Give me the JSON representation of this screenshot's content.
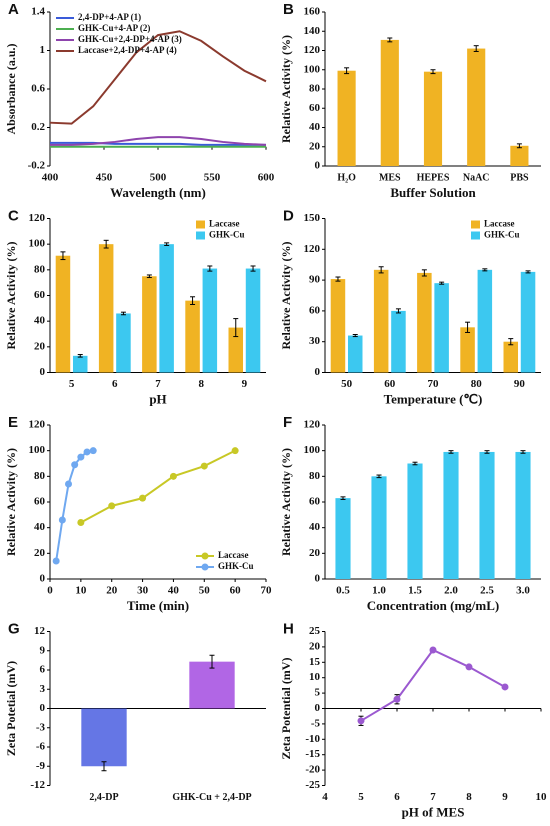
{
  "chart_data": [
    {
      "type": "line",
      "panel": "A",
      "x": [
        400,
        420,
        440,
        460,
        480,
        500,
        520,
        540,
        560,
        580,
        600
      ],
      "xlim": [
        400,
        600
      ],
      "xticks": [
        400,
        450,
        500,
        550,
        600
      ],
      "ylim": [
        -0.2,
        1.4
      ],
      "yticks": [
        -0.2,
        0.2,
        0.6,
        1,
        1.4
      ],
      "xlabel": "Wavelength (nm)",
      "ylabel": "Absorbance (a.u.)",
      "legend": "upper left",
      "series": [
        {
          "name": "2,4-DP+4-AP (1)",
          "color": "#3a5bd9",
          "values": [
            0.04,
            0.04,
            0.04,
            0.03,
            0.03,
            0.03,
            0.03,
            0.02,
            0.02,
            0.02,
            0.02
          ]
        },
        {
          "name": "GHK-Cu+4-AP (2)",
          "color": "#4caf50",
          "values": [
            0,
            0,
            0,
            0,
            0,
            0,
            0,
            0,
            0,
            0,
            0
          ]
        },
        {
          "name": "GHK-Cu+2,4-DP+4-AP (3)",
          "color": "#8e44ad",
          "values": [
            0.02,
            0.02,
            0.03,
            0.05,
            0.08,
            0.1,
            0.1,
            0.08,
            0.05,
            0.03,
            0.02
          ]
        },
        {
          "name": "Laccase+2,4-DP+4-AP (4)",
          "color": "#8b3a2e",
          "values": [
            0.25,
            0.24,
            0.42,
            0.7,
            0.98,
            1.16,
            1.2,
            1.1,
            0.94,
            0.79,
            0.68
          ]
        }
      ]
    },
    {
      "type": "bar",
      "panel": "B",
      "categories": [
        "H₂O",
        "MES",
        "HEPES",
        "NaAC",
        "PBS"
      ],
      "values": [
        99,
        131,
        98,
        122,
        21
      ],
      "errors": [
        3,
        2,
        2,
        3,
        2
      ],
      "color": "#f0b323",
      "ylim": [
        0,
        160
      ],
      "yticks": [
        0,
        20,
        40,
        60,
        80,
        100,
        120,
        140,
        160
      ],
      "xlabel": "Buffer Solution",
      "ylabel": "Relative Activity (%)"
    },
    {
      "type": "bar",
      "panel": "C",
      "categories": [
        "5",
        "6",
        "7",
        "8",
        "9"
      ],
      "ylim": [
        0,
        120
      ],
      "yticks": [
        0,
        20,
        40,
        60,
        80,
        100,
        120
      ],
      "xlabel": "pH",
      "ylabel": "Relative Activity (%)",
      "legend": "upper right",
      "series": [
        {
          "name": "Laccase",
          "color": "#f0b323",
          "values": [
            91,
            100,
            75,
            56,
            35
          ],
          "errors": [
            3,
            3,
            1,
            3,
            7
          ]
        },
        {
          "name": "GHK-Cu",
          "color": "#3cc8f0",
          "values": [
            13,
            46,
            100,
            81,
            81
          ],
          "errors": [
            1,
            1,
            1,
            2,
            2
          ]
        }
      ]
    },
    {
      "type": "bar",
      "panel": "D",
      "categories": [
        "50",
        "60",
        "70",
        "80",
        "90"
      ],
      "ylim": [
        0,
        150
      ],
      "yticks": [
        0,
        30,
        60,
        90,
        120,
        150
      ],
      "xlabel": "Temperature (℃)",
      "ylabel": "Relative Activity (%)",
      "legend": "upper right",
      "series": [
        {
          "name": "Laccase",
          "color": "#f0b323",
          "values": [
            91,
            100,
            97,
            44,
            30
          ],
          "errors": [
            2,
            3,
            3,
            5,
            3
          ]
        },
        {
          "name": "GHK-Cu",
          "color": "#3cc8f0",
          "values": [
            36,
            60,
            87,
            100,
            98
          ],
          "errors": [
            1,
            2,
            1,
            1,
            1
          ]
        }
      ]
    },
    {
      "type": "line",
      "panel": "E",
      "markers": true,
      "xlim": [
        0,
        70
      ],
      "xticks": [
        0,
        10,
        20,
        30,
        40,
        50,
        60,
        70
      ],
      "ylim": [
        0,
        120
      ],
      "yticks": [
        0,
        20,
        40,
        60,
        80,
        100,
        120
      ],
      "xlabel": "Time (min)",
      "ylabel": "Relative Activity (%)",
      "legend": "lower right",
      "series": [
        {
          "name": "Laccase",
          "color": "#c8c826",
          "x": [
            10,
            20,
            30,
            40,
            50,
            60
          ],
          "values": [
            44,
            57,
            63,
            80,
            88,
            100
          ]
        },
        {
          "name": "GHK-Cu",
          "color": "#6fa8f0",
          "x": [
            2,
            4,
            6,
            8,
            10,
            12,
            14
          ],
          "values": [
            14,
            46,
            74,
            89,
            95,
            99,
            100
          ]
        }
      ]
    },
    {
      "type": "bar",
      "panel": "F",
      "categories": [
        "0.5",
        "1.0",
        "1.5",
        "2.0",
        "2.5",
        "3.0"
      ],
      "values": [
        63,
        80,
        90,
        99,
        99,
        99
      ],
      "errors": [
        1,
        1,
        1,
        1,
        1,
        1
      ],
      "color": "#3cc8f0",
      "ylim": [
        0,
        120
      ],
      "yticks": [
        0,
        20,
        40,
        60,
        80,
        100,
        120
      ],
      "xlabel": "Concentration (mg/mL)",
      "ylabel": "Relative Activity (%)"
    },
    {
      "type": "bar",
      "panel": "G",
      "categories": [
        "2,4-DP",
        "GHK-Cu + 2,4-DP"
      ],
      "values": [
        -9,
        7.3
      ],
      "errors": [
        0.7,
        1
      ],
      "colors": [
        "#4a5ee0",
        "#a34be0"
      ],
      "ylim": [
        -12,
        12
      ],
      "yticks": [
        -12,
        -9,
        -6,
        -3,
        0,
        3,
        6,
        9,
        12
      ],
      "ylabel": "Zeta Potetial (mV)"
    },
    {
      "type": "line",
      "panel": "H",
      "markers": true,
      "x": [
        5,
        6,
        7,
        8,
        9
      ],
      "xlim": [
        4,
        10
      ],
      "xticks": [
        4,
        5,
        6,
        7,
        8,
        9,
        10
      ],
      "ylim": [
        -25,
        25
      ],
      "yticks": [
        -25,
        -20,
        -15,
        -10,
        -5,
        0,
        5,
        10,
        15,
        20,
        25
      ],
      "xlabel": "pH of MES",
      "ylabel": "Zeta Potential (mV)",
      "series": [
        {
          "color": "#9b59d0",
          "values": [
            -4,
            3,
            19,
            13.5,
            7
          ],
          "errors": [
            1.5,
            1.5,
            0.5,
            0.5,
            0.5
          ]
        }
      ]
    }
  ]
}
